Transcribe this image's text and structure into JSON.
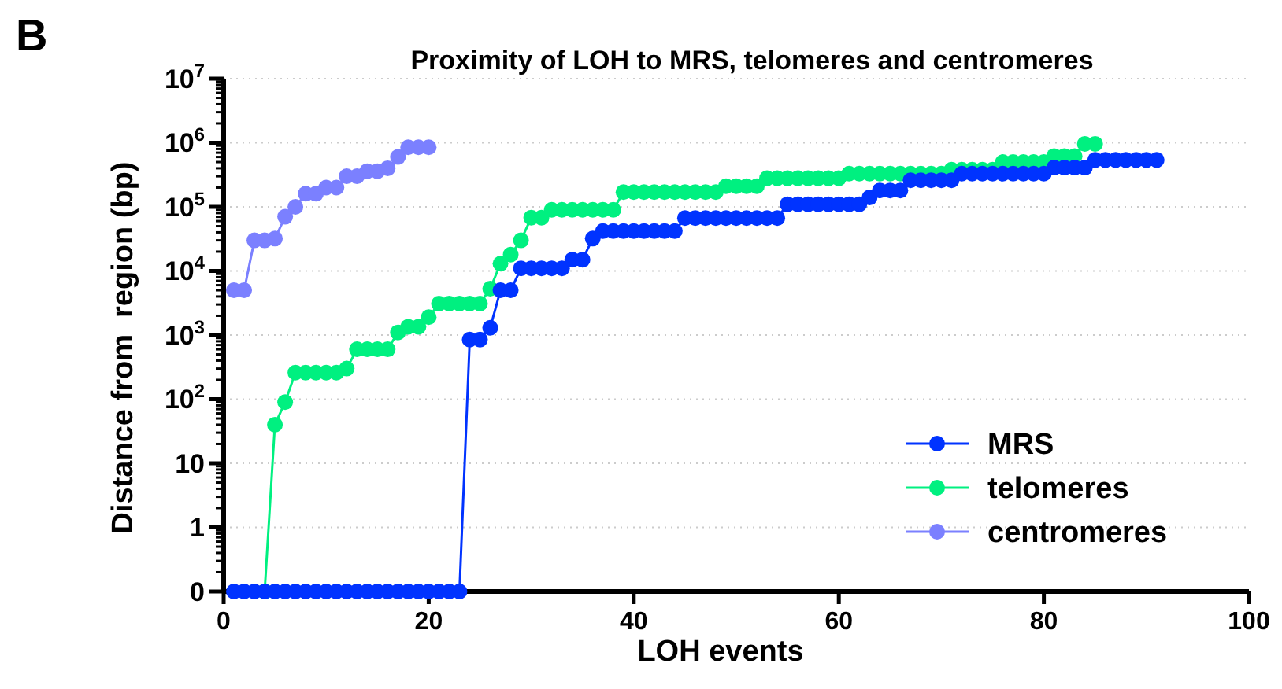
{
  "chart_data": {
    "type": "line",
    "title": "Proximity of LOH to MRS, telomeres and centromeres",
    "xlabel": "LOH events",
    "ylabel": "Distance from  region (bp)",
    "annotations": [
      "B"
    ],
    "log": "y",
    "grid": "y",
    "legend": "bottom right",
    "marker": "circle",
    "line_style": "solid",
    "xlim": [
      0,
      100
    ],
    "xticks": [
      0,
      20,
      40,
      60,
      80,
      100
    ],
    "ylim": [
      0.1,
      10000000
    ],
    "yticks": [
      {
        "value": 0.1,
        "label": "0"
      },
      1,
      10,
      {
        "value": 100,
        "label": "10$^{2}$"
      },
      {
        "value": 1000,
        "label": "10$^{3}$"
      },
      {
        "value": 10000,
        "label": "10$^{4}$"
      },
      {
        "value": 100000,
        "label": "10$^{5}$"
      },
      {
        "value": 1000000,
        "label": "10$^{6}$"
      },
      {
        "value": 10000000,
        "label": "10$^{7}$"
      }
    ],
    "series": [
      {
        "name": "MRS",
        "color": "#0033ff",
        "x": [
          1,
          2,
          3,
          4,
          5,
          6,
          7,
          8,
          9,
          10,
          11,
          12,
          13,
          14,
          15,
          16,
          17,
          18,
          19,
          20,
          21,
          22,
          23,
          24,
          25,
          26,
          27,
          28,
          29,
          30,
          31,
          32,
          33,
          34,
          35,
          36,
          37,
          38,
          39,
          40,
          41,
          42,
          43,
          44,
          45,
          46,
          47,
          48,
          49,
          50,
          51,
          52,
          53,
          54,
          55,
          56,
          57,
          58,
          59,
          60,
          61,
          62,
          63,
          64,
          65,
          66,
          67,
          68,
          69,
          70,
          71,
          72,
          73,
          74,
          75,
          76,
          77,
          78,
          79,
          80,
          81,
          82,
          83,
          84,
          85,
          86,
          87,
          88,
          89,
          90,
          91
        ],
        "values": [
          0.1,
          0.1,
          0.1,
          0.1,
          0.1,
          0.1,
          0.1,
          0.1,
          0.1,
          0.1,
          0.1,
          0.1,
          0.1,
          0.1,
          0.1,
          0.1,
          0.1,
          0.1,
          0.1,
          0.1,
          0.1,
          0.1,
          0.1,
          850,
          850,
          1300,
          5000,
          5000,
          11000,
          11000,
          11000,
          11000,
          11000,
          15000,
          15000,
          32000,
          42000,
          42000,
          42000,
          42000,
          42000,
          42000,
          42000,
          42000,
          67000,
          67000,
          67000,
          67000,
          67000,
          67000,
          67000,
          67000,
          67000,
          67000,
          110000,
          110000,
          110000,
          110000,
          110000,
          110000,
          110000,
          110000,
          140000,
          180000,
          180000,
          180000,
          260000,
          260000,
          260000,
          260000,
          260000,
          330000,
          330000,
          330000,
          330000,
          330000,
          330000,
          330000,
          330000,
          330000,
          410000,
          410000,
          410000,
          410000,
          540000,
          540000,
          540000,
          540000,
          540000,
          540000,
          540000
        ]
      },
      {
        "name": "telomeres",
        "color": "#00f080",
        "x": [
          4,
          5,
          6,
          7,
          8,
          9,
          10,
          11,
          12,
          13,
          14,
          15,
          16,
          17,
          18,
          19,
          20,
          21,
          22,
          23,
          24,
          25,
          26,
          27,
          28,
          29,
          30,
          31,
          32,
          33,
          34,
          35,
          36,
          37,
          38,
          39,
          40,
          41,
          42,
          43,
          44,
          45,
          46,
          47,
          48,
          49,
          50,
          51,
          52,
          53,
          54,
          55,
          56,
          57,
          58,
          59,
          60,
          61,
          62,
          63,
          64,
          65,
          66,
          67,
          68,
          69,
          70,
          71,
          72,
          73,
          74,
          75,
          76,
          77,
          78,
          79,
          80,
          81,
          82,
          83,
          84,
          85
        ],
        "values": [
          0.1,
          40,
          90,
          260,
          260,
          260,
          260,
          260,
          300,
          600,
          600,
          600,
          600,
          1100,
          1350,
          1350,
          1900,
          3100,
          3100,
          3100,
          3100,
          3100,
          5300,
          13000,
          18000,
          30000,
          68000,
          68000,
          90000,
          90000,
          90000,
          90000,
          90000,
          90000,
          90000,
          170000,
          170000,
          170000,
          170000,
          170000,
          170000,
          170000,
          170000,
          170000,
          170000,
          210000,
          210000,
          210000,
          210000,
          280000,
          280000,
          280000,
          280000,
          280000,
          280000,
          280000,
          280000,
          330000,
          330000,
          330000,
          330000,
          330000,
          330000,
          330000,
          330000,
          330000,
          330000,
          380000,
          380000,
          380000,
          380000,
          380000,
          500000,
          500000,
          500000,
          500000,
          500000,
          620000,
          620000,
          620000,
          960000,
          960000
        ]
      },
      {
        "name": "centromeres",
        "color": "#7b80ff",
        "x": [
          1,
          2,
          3,
          4,
          5,
          6,
          7,
          8,
          9,
          10,
          11,
          12,
          13,
          14,
          15,
          16,
          17,
          18,
          19,
          20
        ],
        "values": [
          5000,
          5000,
          30000,
          30000,
          32000,
          70000,
          100000,
          160000,
          160000,
          200000,
          200000,
          300000,
          300000,
          360000,
          360000,
          400000,
          600000,
          850000,
          850000,
          850000
        ]
      }
    ]
  }
}
